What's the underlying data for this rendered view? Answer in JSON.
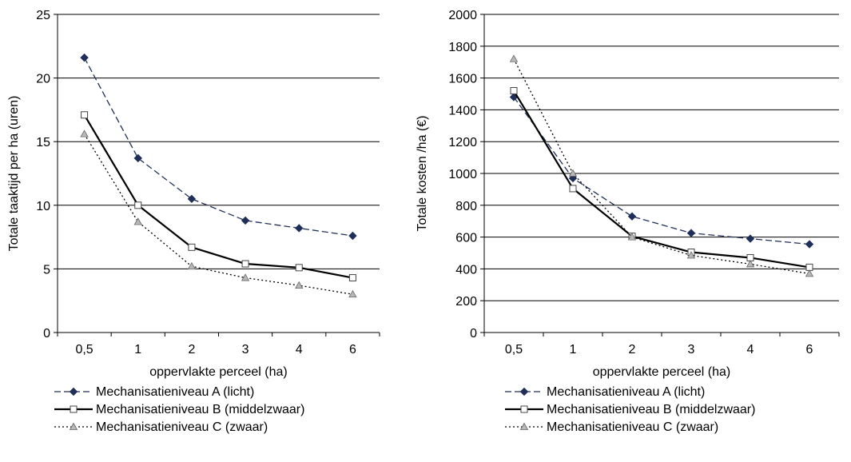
{
  "chart_data": [
    {
      "type": "line",
      "categories": [
        "0,5",
        "1",
        "2",
        "3",
        "4",
        "6"
      ],
      "xlabel": "oppervlakte perceel (ha)",
      "ylabel": "Totale taaktijd per ha (uren)",
      "ylim": [
        0,
        25
      ],
      "yticks": [
        0,
        5,
        10,
        15,
        20,
        25
      ],
      "grid": "horizontal",
      "legend": "bottom",
      "series": [
        {
          "name": "Mechanisatieniveau A (licht)",
          "style": "dashed",
          "marker": "diamond",
          "color": "#1f2f5a",
          "values": [
            21.6,
            13.7,
            10.5,
            8.8,
            8.2,
            7.6
          ]
        },
        {
          "name": "Mechanisatieniveau B (middelzwaar)",
          "style": "solid",
          "marker": "square",
          "color": "#000000",
          "values": [
            17.1,
            10.0,
            6.7,
            5.4,
            5.1,
            4.3
          ]
        },
        {
          "name": "Mechanisatieniveau C (zwaar)",
          "style": "dotted",
          "marker": "triangle",
          "color": "#000000",
          "values": [
            15.6,
            8.7,
            5.2,
            4.3,
            3.7,
            3.0
          ]
        }
      ]
    },
    {
      "type": "line",
      "categories": [
        "0,5",
        "1",
        "2",
        "3",
        "4",
        "6"
      ],
      "xlabel": "oppervlakte perceel (ha)",
      "ylabel": "Totale kosten /ha (€)",
      "ylim": [
        0,
        2000
      ],
      "yticks": [
        0,
        200,
        400,
        600,
        800,
        1000,
        1200,
        1400,
        1600,
        1800,
        2000
      ],
      "grid": "horizontal",
      "legend": "bottom",
      "series": [
        {
          "name": "Mechanisatieniveau A (licht)",
          "style": "dashed",
          "marker": "diamond",
          "color": "#1f2f5a",
          "values": [
            1480,
            970,
            730,
            625,
            590,
            555
          ]
        },
        {
          "name": "Mechanisatieniveau B (middelzwaar)",
          "style": "solid",
          "marker": "square",
          "color": "#000000",
          "values": [
            1520,
            905,
            605,
            505,
            470,
            410
          ]
        },
        {
          "name": "Mechanisatieniveau C (zwaar)",
          "style": "dotted",
          "marker": "triangle",
          "color": "#000000",
          "values": [
            1720,
            1000,
            600,
            485,
            430,
            370
          ]
        }
      ]
    }
  ]
}
